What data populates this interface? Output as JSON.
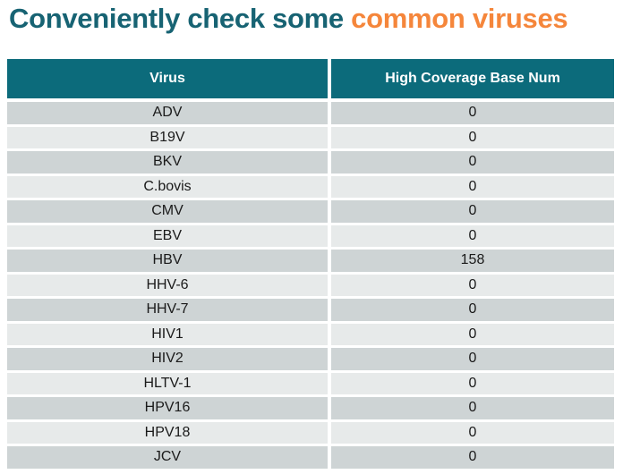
{
  "title": {
    "prefix": "Conveniently check some ",
    "highlight": "common viruses"
  },
  "colors": {
    "title_teal": "#176373",
    "title_orange": "#F5863B",
    "header_bg": "#0C6B7B",
    "header_text": "#FFFFFF",
    "row_dark": "#CED4D5",
    "row_light": "#E7EAEA",
    "cell_text": "#1A1A1A"
  },
  "table": {
    "columns": [
      "Virus",
      "High Coverage Base Num"
    ],
    "rows": [
      {
        "virus": "ADV",
        "value": "0"
      },
      {
        "virus": "B19V",
        "value": "0"
      },
      {
        "virus": "BKV",
        "value": "0"
      },
      {
        "virus": "C.bovis",
        "value": "0"
      },
      {
        "virus": "CMV",
        "value": "0"
      },
      {
        "virus": "EBV",
        "value": "0"
      },
      {
        "virus": "HBV",
        "value": "158"
      },
      {
        "virus": "HHV-6",
        "value": "0"
      },
      {
        "virus": "HHV-7",
        "value": "0"
      },
      {
        "virus": "HIV1",
        "value": "0"
      },
      {
        "virus": "HIV2",
        "value": "0"
      },
      {
        "virus": "HLTV-1",
        "value": "0"
      },
      {
        "virus": "HPV16",
        "value": "0"
      },
      {
        "virus": "HPV18",
        "value": "0"
      },
      {
        "virus": "JCV",
        "value": "0"
      }
    ]
  }
}
